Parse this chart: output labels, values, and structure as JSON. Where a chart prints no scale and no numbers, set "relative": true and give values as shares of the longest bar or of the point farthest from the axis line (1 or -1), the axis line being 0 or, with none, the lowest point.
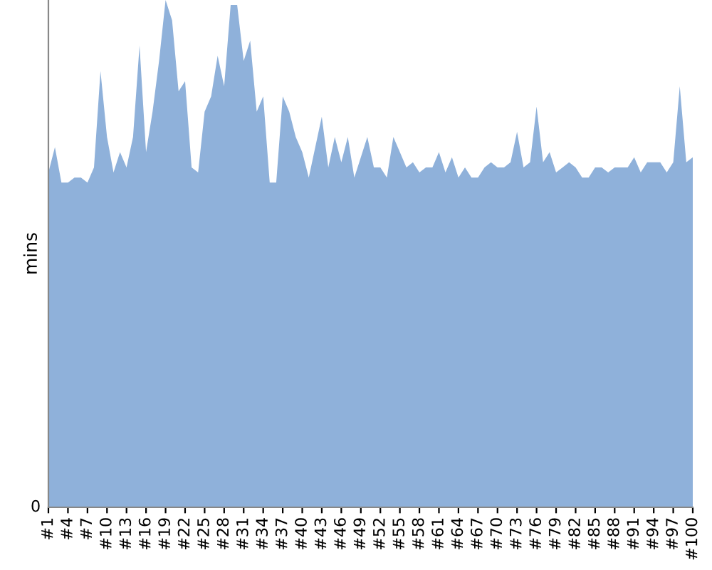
{
  "chart_data": {
    "type": "area",
    "ylabel": "mins",
    "relative": true,
    "annotations": [
      "0"
    ],
    "categories": [
      "#1",
      null,
      null,
      "#4",
      null,
      null,
      "#7",
      null,
      null,
      "#10",
      null,
      null,
      "#13",
      null,
      null,
      "#16",
      null,
      null,
      "#19",
      null,
      null,
      "#22",
      null,
      null,
      "#25",
      null,
      null,
      "#28",
      null,
      null,
      "#31",
      null,
      null,
      "#34",
      null,
      null,
      "#37",
      null,
      null,
      "#40",
      null,
      null,
      "#43",
      null,
      null,
      "#46",
      null,
      null,
      "#49",
      null,
      null,
      "#52",
      null,
      null,
      "#55",
      null,
      null,
      "#58",
      null,
      null,
      "#61",
      null,
      null,
      "#64",
      null,
      null,
      "#67",
      null,
      null,
      "#70",
      null,
      null,
      "#73",
      null,
      null,
      "#76",
      null,
      null,
      "#79",
      null,
      null,
      "#82",
      null,
      null,
      "#85",
      null,
      null,
      "#88",
      null,
      null,
      "#91",
      null,
      null,
      "#94",
      null,
      null,
      "#97",
      null,
      null,
      "#100"
    ],
    "series": [
      {
        "color": "#8fb1da",
        "values": [
          0.66,
          0.71,
          0.64,
          0.64,
          0.65,
          0.65,
          0.64,
          0.67,
          0.86,
          0.73,
          0.66,
          0.7,
          0.67,
          0.73,
          0.91,
          0.7,
          0.78,
          0.88,
          1,
          0.96,
          0.82,
          0.84,
          0.67,
          0.66,
          0.78,
          0.81,
          0.89,
          0.83,
          0.99,
          0.99,
          0.88,
          0.92,
          0.78,
          0.81,
          0.64,
          0.64,
          0.81,
          0.78,
          0.73,
          0.7,
          0.65,
          0.71,
          0.77,
          0.67,
          0.73,
          0.68,
          0.73,
          0.65,
          0.69,
          0.73,
          0.67,
          0.67,
          0.65,
          0.73,
          0.7,
          0.67,
          0.68,
          0.66,
          0.67,
          0.67,
          0.7,
          0.66,
          0.69,
          0.65,
          0.67,
          0.65,
          0.65,
          0.67,
          0.68,
          0.67,
          0.67,
          0.68,
          0.74,
          0.67,
          0.68,
          0.79,
          0.68,
          0.7,
          0.66,
          0.67,
          0.68,
          0.67,
          0.65,
          0.65,
          0.67,
          0.67,
          0.66,
          0.67,
          0.67,
          0.67,
          0.69,
          0.66,
          0.68,
          0.68,
          0.68,
          0.66,
          0.68,
          0.83,
          0.68,
          0.69
        ]
      }
    ]
  }
}
